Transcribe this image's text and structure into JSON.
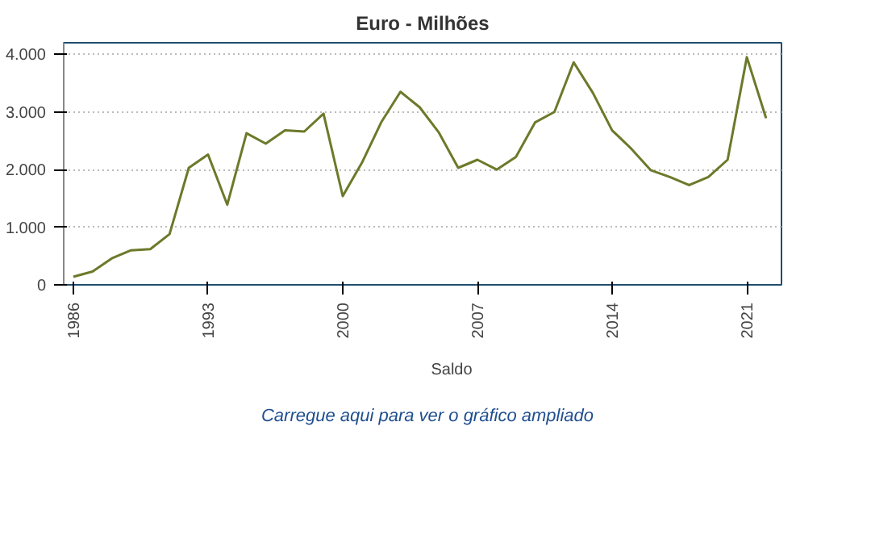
{
  "chart_data": {
    "type": "line",
    "title": "Euro - Milhões",
    "x": [
      1986,
      1987,
      1988,
      1989,
      1990,
      1991,
      1992,
      1993,
      1994,
      1995,
      1996,
      1997,
      1998,
      1999,
      2000,
      2001,
      2002,
      2003,
      2004,
      2005,
      2006,
      2007,
      2008,
      2009,
      2010,
      2011,
      2012,
      2013,
      2014,
      2015,
      2016,
      2017,
      2018,
      2019,
      2020,
      2021,
      2022
    ],
    "series": [
      {
        "name": "Saldo",
        "color": "#6b7a2a",
        "values": [
          140,
          230,
          460,
          600,
          620,
          880,
          2030,
          2260,
          1390,
          2630,
          2450,
          2680,
          2660,
          2970,
          1540,
          2120,
          2820,
          3350,
          3080,
          2640,
          2030,
          2170,
          2000,
          2220,
          2820,
          3000,
          3860,
          3330,
          2680,
          2360,
          1990,
          1870,
          1730,
          1870,
          2170,
          3950,
          2890
        ]
      }
    ],
    "xlim": [
      1985.5,
      2022.8
    ],
    "xticks": [
      1986,
      1993,
      2000,
      2007,
      2014,
      2021
    ],
    "ylim": [
      0,
      4200
    ],
    "yticks": [
      {
        "value": 0,
        "label": "0"
      },
      {
        "value": 1000,
        "label": "1.000"
      },
      {
        "value": 2000,
        "label": "2.000"
      },
      {
        "value": 3000,
        "label": "3.000"
      },
      {
        "value": 4000,
        "label": "4.000"
      }
    ],
    "grid": "y",
    "legend": "bottom",
    "marker": "none",
    "line_style": "solid",
    "annotations": [
      "Carregue aqui para ver o gráfico ampliado"
    ]
  }
}
